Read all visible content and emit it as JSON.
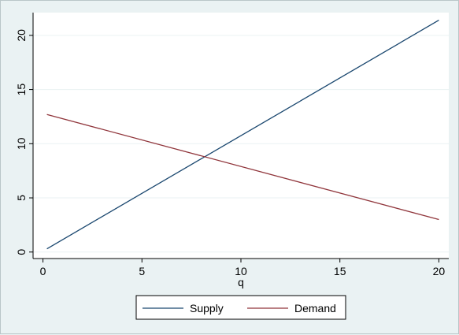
{
  "chart_data": {
    "type": "line",
    "xlabel": "q",
    "ylabel": "",
    "xlim": [
      -0.5,
      20.5
    ],
    "ylim": [
      -0.6,
      22.1
    ],
    "xticks": [
      0,
      5,
      10,
      15,
      20
    ],
    "yticks": [
      0,
      5,
      10,
      15,
      20
    ],
    "grid": "horizontal",
    "legend_position": "bottom",
    "series": [
      {
        "name": "Supply",
        "color": "#1a476f",
        "x": [
          0.2,
          20
        ],
        "y": [
          0.3,
          21.4
        ]
      },
      {
        "name": "Demand",
        "color": "#90353b",
        "x": [
          0.2,
          20
        ],
        "y": [
          12.7,
          3.0
        ]
      }
    ]
  }
}
